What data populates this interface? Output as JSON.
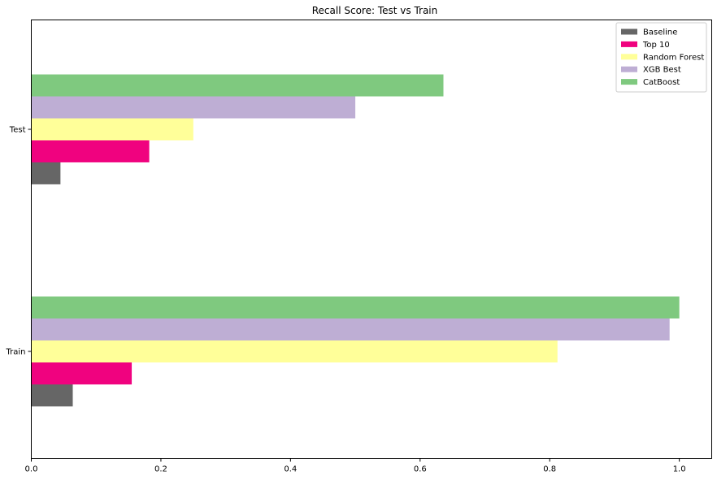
{
  "chart_data": {
    "type": "bar",
    "orientation": "horizontal",
    "title": "Recall Score: Test vs Train",
    "xlabel": "",
    "ylabel": "",
    "categories": [
      "Train",
      "Test"
    ],
    "xlim": [
      0,
      1.05
    ],
    "x_ticks": [
      0.0,
      0.2,
      0.4,
      0.6,
      0.8,
      1.0
    ],
    "x_tick_labels": [
      "0.0",
      "0.2",
      "0.4",
      "0.6",
      "0.8",
      "1.0"
    ],
    "grid": false,
    "legend_position": "top-right",
    "series": [
      {
        "name": "Baseline",
        "color": "#666666",
        "values": [
          0.064,
          0.045
        ]
      },
      {
        "name": "Top 10",
        "color": "#f0027f",
        "values": [
          0.155,
          0.182
        ]
      },
      {
        "name": "Random Forest",
        "color": "#ffff99",
        "values": [
          0.812,
          0.25
        ]
      },
      {
        "name": "XGB Best",
        "color": "#beaed4",
        "values": [
          0.985,
          0.5
        ]
      },
      {
        "name": "CatBoost",
        "color": "#7fc97f",
        "values": [
          1.0,
          0.636
        ]
      }
    ]
  }
}
